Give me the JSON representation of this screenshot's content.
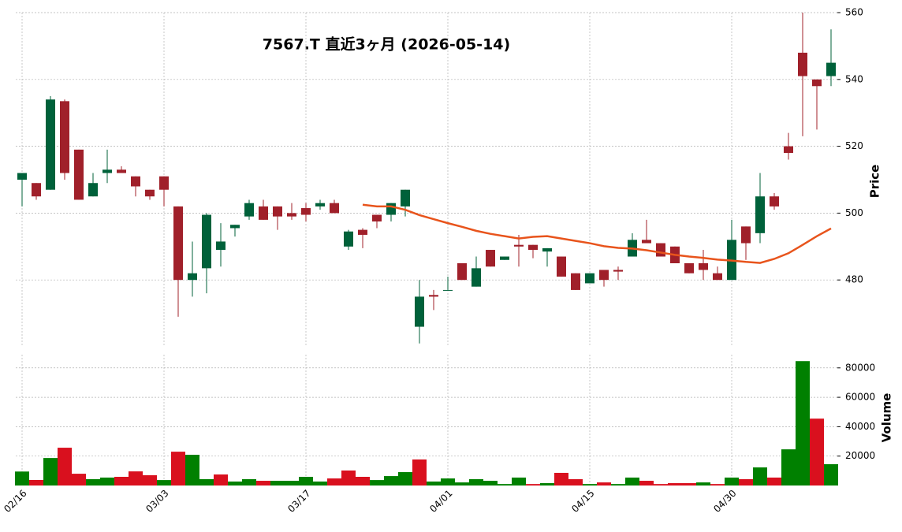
{
  "chart_data": {
    "type": "candlestick",
    "title": "7567.T  直近3ヶ月  (2026-05-14)",
    "y_label": "Price",
    "y2_label": "Volume",
    "categories": [
      "02/16",
      null,
      null,
      null,
      null,
      null,
      null,
      null,
      null,
      null,
      "03/03",
      null,
      null,
      null,
      null,
      null,
      null,
      null,
      null,
      null,
      "03/17",
      null,
      null,
      null,
      null,
      null,
      null,
      null,
      null,
      null,
      "04/01",
      null,
      null,
      null,
      null,
      null,
      null,
      null,
      null,
      null,
      "04/15",
      null,
      null,
      null,
      null,
      null,
      null,
      null,
      null,
      null,
      "04/30",
      null,
      null,
      null,
      null,
      null,
      null,
      null
    ],
    "open": [
      510,
      509,
      507,
      533.5,
      519,
      505,
      512,
      513,
      511,
      507,
      511,
      502,
      480,
      483.5,
      489,
      495.5,
      499,
      502,
      502,
      500,
      501.5,
      502,
      503,
      490,
      495,
      499.5,
      499.5,
      502,
      466,
      475.5,
      477,
      485,
      478,
      489,
      486,
      490.5,
      490.5,
      488.5,
      487,
      482,
      479,
      483,
      483,
      487,
      492,
      491,
      490,
      485,
      485,
      482,
      480,
      496,
      494,
      505,
      520,
      548,
      540,
      541
    ],
    "high": [
      512,
      509,
      535,
      534,
      519,
      512,
      519,
      514,
      511,
      507,
      511,
      502,
      491.5,
      500,
      497,
      496.5,
      504,
      504,
      502,
      503,
      503,
      504,
      504,
      495,
      495.5,
      499.5,
      503,
      507,
      480,
      477,
      481,
      485,
      487,
      489,
      487,
      493.5,
      490.5,
      489.5,
      487,
      482,
      482,
      483,
      484,
      494,
      498,
      491,
      490,
      485,
      489,
      484,
      498,
      496,
      512,
      506,
      524,
      560,
      540,
      555
    ],
    "low": [
      502,
      504,
      507,
      510,
      504,
      505,
      509,
      512,
      505,
      504,
      502,
      469,
      475,
      476,
      484,
      493,
      498,
      498,
      495,
      498,
      497.5,
      501,
      500,
      489,
      489.5,
      495.5,
      497.5,
      499,
      461,
      471,
      477,
      480,
      478,
      484,
      486,
      484,
      486.5,
      484,
      481,
      477,
      479,
      478,
      480,
      487,
      491,
      487,
      485,
      482,
      480,
      480,
      480,
      486,
      491,
      501,
      516,
      523,
      525,
      538
    ],
    "close": [
      512,
      505,
      534,
      512,
      504,
      509,
      513,
      512,
      508,
      505,
      507,
      480,
      482,
      499.5,
      491.5,
      496.5,
      503,
      498,
      499,
      499,
      499.5,
      503,
      500,
      494.5,
      493.5,
      497.5,
      503,
      507,
      475,
      475,
      477,
      480,
      483.5,
      484,
      487,
      490,
      489,
      489.5,
      481,
      477,
      482,
      480,
      482.5,
      492,
      491,
      487,
      485,
      482,
      483,
      480,
      492,
      491,
      505,
      502,
      518,
      541,
      538,
      545
    ],
    "volume": [
      9500,
      3750,
      18700,
      25700,
      8000,
      4300,
      5400,
      5900,
      9600,
      7000,
      3700,
      23000,
      20900,
      4300,
      7500,
      2700,
      4300,
      3200,
      3200,
      3200,
      5900,
      2700,
      4800,
      10200,
      5900,
      3700,
      6400,
      9100,
      17700,
      2700,
      4800,
      2100,
      4300,
      3200,
      1000,
      5400,
      1000,
      1600,
      8600,
      4300,
      1000,
      2100,
      1000,
      5400,
      3200,
      1000,
      1600,
      1600,
      2100,
      1000,
      5400,
      4300,
      12300,
      5400,
      24600,
      84600,
      45500,
      14500
    ],
    "ma": [
      null,
      null,
      null,
      null,
      null,
      null,
      null,
      null,
      null,
      null,
      null,
      null,
      null,
      null,
      null,
      null,
      null,
      null,
      null,
      null,
      null,
      null,
      null,
      null,
      502.5,
      502,
      502,
      501,
      499.4,
      498.2,
      497,
      495.9,
      494.7,
      493.8,
      493.1,
      492.4,
      492.9,
      493.1,
      492.4,
      491.7,
      491,
      490.1,
      489.6,
      489.4,
      488.9,
      488.2,
      487.5,
      487,
      486.6,
      486.1,
      485.8,
      485.4,
      485.1,
      486.3,
      488,
      490.5,
      493.1,
      495.4
    ],
    "up_color": "#00613a",
    "down_color": "#a0202a",
    "volume_up_color": "#008000",
    "volume_down_color": "#d9101e",
    "ma_color": "#e8541c",
    "ylim": [
      460,
      560
    ],
    "yticks": [
      480,
      500,
      520,
      540,
      560
    ],
    "y2lim": [
      0,
      89000
    ],
    "y2ticks": [
      20000,
      40000,
      60000,
      80000
    ],
    "grid": true
  }
}
